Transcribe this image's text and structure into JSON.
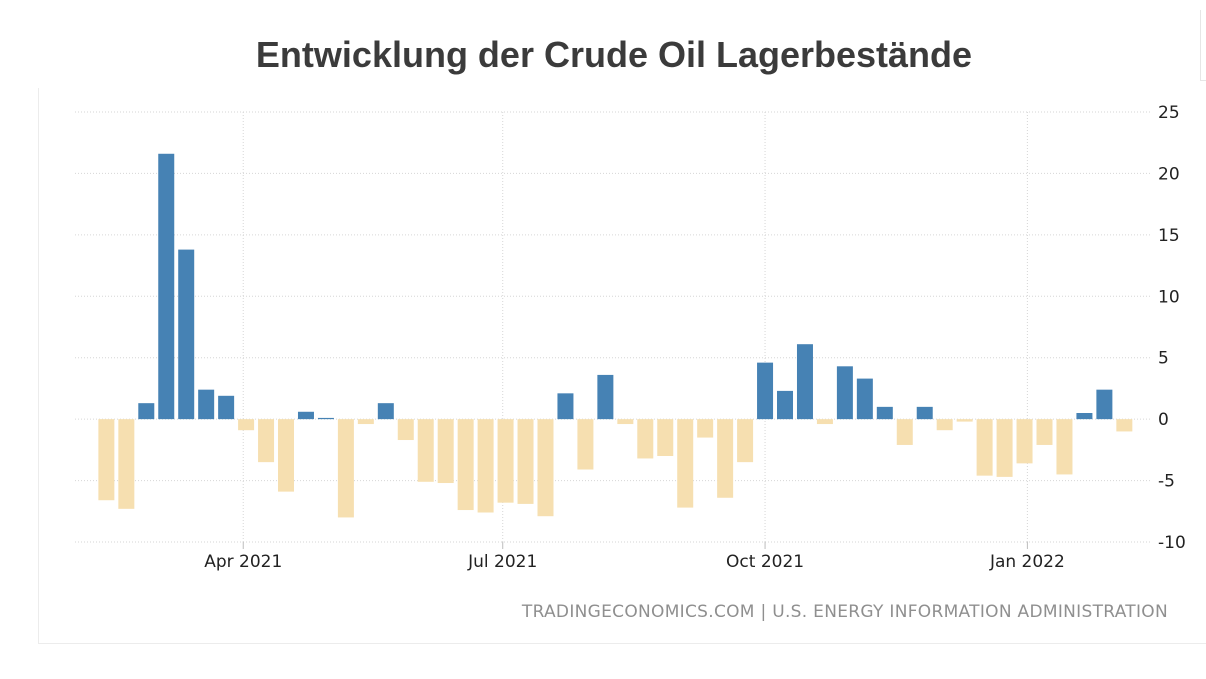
{
  "chart_data": {
    "type": "bar",
    "title": "Entwicklung der Crude Oil Lagerbestände",
    "source": "TRADINGECONOMICS.COM | U.S. ENERGY INFORMATION ADMINISTRATION",
    "ylim": [
      -10,
      25
    ],
    "y_ticks": [
      "25",
      "20",
      "15",
      "10",
      "5",
      "0",
      "-5",
      "-10"
    ],
    "y_tick_values": [
      25,
      20,
      15,
      10,
      5,
      0,
      -5,
      -10
    ],
    "x_ticks": [
      "Apr 2021",
      "Jul 2021",
      "Oct 2021",
      "Jan 2022"
    ],
    "x_tick_dates": [
      "2021-04-01",
      "2021-07-01",
      "2021-10-01",
      "2022-01-01"
    ],
    "x_range": [
      "2021-02-01",
      "2022-02-13"
    ],
    "grid": true,
    "colors": {
      "positive": "#4682b4",
      "negative": "#f6dfb0"
    },
    "dates": [
      "2021-02-12",
      "2021-02-19",
      "2021-02-26",
      "2021-03-05",
      "2021-03-12",
      "2021-03-19",
      "2021-03-26",
      "2021-04-02",
      "2021-04-09",
      "2021-04-16",
      "2021-04-23",
      "2021-04-30",
      "2021-05-07",
      "2021-05-14",
      "2021-05-21",
      "2021-05-28",
      "2021-06-04",
      "2021-06-11",
      "2021-06-18",
      "2021-06-25",
      "2021-07-02",
      "2021-07-09",
      "2021-07-16",
      "2021-07-23",
      "2021-07-30",
      "2021-08-06",
      "2021-08-13",
      "2021-08-20",
      "2021-08-27",
      "2021-09-03",
      "2021-09-10",
      "2021-09-17",
      "2021-09-24",
      "2021-10-01",
      "2021-10-08",
      "2021-10-15",
      "2021-10-22",
      "2021-10-29",
      "2021-11-05",
      "2021-11-12",
      "2021-11-19",
      "2021-11-26",
      "2021-12-03",
      "2021-12-10",
      "2021-12-17",
      "2021-12-24",
      "2021-12-31",
      "2022-01-07",
      "2022-01-14",
      "2022-01-21",
      "2022-01-28",
      "2022-02-04"
    ],
    "values": [
      -6.6,
      -7.3,
      1.3,
      21.6,
      13.8,
      2.4,
      1.9,
      -0.9,
      -3.5,
      -5.9,
      0.6,
      0.1,
      -8.0,
      -0.4,
      1.3,
      -1.7,
      -5.1,
      -5.2,
      -7.4,
      -7.6,
      -6.8,
      -6.9,
      -7.9,
      2.1,
      -4.1,
      3.6,
      -0.4,
      -3.2,
      -3.0,
      -7.2,
      -1.5,
      -6.4,
      -3.5,
      4.6,
      2.3,
      6.1,
      -0.4,
      4.3,
      3.3,
      1.0,
      -2.1,
      1.0,
      -0.9,
      -0.2,
      -4.6,
      -4.7,
      -3.6,
      -2.1,
      -4.5,
      0.5,
      2.4,
      -1.0
    ]
  }
}
